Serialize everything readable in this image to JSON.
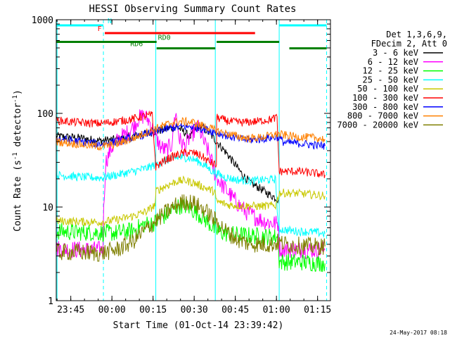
{
  "chart_data": {
    "type": "line",
    "title": "HESSI Observing Summary Count Rates",
    "xlabel": "Start Time (01-Oct-14 23:39:42)",
    "ylabel_main": "Count Rate (s",
    "ylabel_sup1": "-1",
    "ylabel_mid": " detector",
    "ylabel_sup2": "-1",
    "ylabel_end": ")",
    "footer_date": "24-May-2017 08:18",
    "x_unit": "minutes since 23:39:42",
    "xlim": [
      0,
      100
    ],
    "ylim": [
      1,
      1000
    ],
    "yscale": "log",
    "x_ticks": [
      {
        "label": "23:45",
        "x": 5.3
      },
      {
        "label": "00:00",
        "x": 20.3
      },
      {
        "label": "00:15",
        "x": 35.3
      },
      {
        "label": "00:30",
        "x": 50.3
      },
      {
        "label": "00:45",
        "x": 65.3
      },
      {
        "label": "01:00",
        "x": 80.3
      },
      {
        "label": "01:15",
        "x": 95.3
      }
    ],
    "y_ticks": [
      {
        "label": "1",
        "y": 1
      },
      {
        "label": "10",
        "y": 10
      },
      {
        "label": "100",
        "y": 100
      },
      {
        "label": "1000",
        "y": 1000
      }
    ],
    "legend_header": [
      "Det 1,3,6,9,",
      "FDecim 2, Att 0"
    ],
    "flag_bars": [
      {
        "label": "N",
        "color": "#00ffff",
        "y": 870,
        "segments": [
          [
            0,
            17.2
          ],
          [
            81.3,
            98.6
          ]
        ],
        "label_x": 19.5
      },
      {
        "label": "F",
        "color": "#ff0000",
        "y": 720,
        "segments": [
          [
            17.7,
            72.5
          ]
        ],
        "label_x": 15.8
      },
      {
        "label": "RD0",
        "color": "#007f00",
        "y": 580,
        "segments": [
          [
            0,
            36.6
          ],
          [
            58.5,
            81.3
          ]
        ],
        "label_x": 39.4
      },
      {
        "label": "RD6",
        "color": "#007f00",
        "y": 495,
        "segments": [
          [
            36.6,
            58.0
          ],
          [
            85.0,
            98.6
          ]
        ],
        "label_x": 29.3
      }
    ],
    "vlines": [
      {
        "x": 0.3,
        "color": "#00ffff",
        "style": "solid"
      },
      {
        "x": 17.2,
        "color": "#00ffff",
        "style": "dashed"
      },
      {
        "x": 36.3,
        "color": "#00ffff",
        "style": "solid"
      },
      {
        "x": 58.0,
        "color": "#00ffff",
        "style": "solid"
      },
      {
        "x": 81.3,
        "color": "#00ffff",
        "style": "solid"
      },
      {
        "x": 98.6,
        "color": "#00ffff",
        "style": "dashed"
      }
    ],
    "series": [
      {
        "name": "3 - 6 keV",
        "color": "#000000",
        "points": [
          [
            0,
            57
          ],
          [
            8,
            55
          ],
          [
            16,
            51
          ],
          [
            22,
            53
          ],
          [
            27,
            56
          ],
          [
            32,
            60
          ],
          [
            36,
            64
          ],
          [
            40,
            68
          ],
          [
            44,
            72
          ],
          [
            47,
            62
          ],
          [
            49,
            56
          ],
          [
            51,
            70
          ],
          [
            53,
            72
          ],
          [
            55,
            65
          ],
          [
            57,
            56
          ],
          [
            59,
            48
          ],
          [
            62,
            38
          ],
          [
            65,
            29
          ],
          [
            68,
            22
          ],
          [
            71,
            18
          ],
          [
            74,
            16
          ],
          [
            77,
            14
          ],
          [
            79,
            13
          ],
          [
            81,
            12
          ]
        ]
      },
      {
        "name": "6 - 12 keV",
        "color": "#ff00ff",
        "points": [
          [
            0,
            3.6
          ],
          [
            8,
            3.5
          ],
          [
            17,
            3.5
          ],
          [
            17.3,
            9
          ],
          [
            18,
            30
          ],
          [
            20,
            42
          ],
          [
            23,
            54
          ],
          [
            26,
            62
          ],
          [
            28,
            72
          ],
          [
            30,
            88
          ],
          [
            32,
            95
          ],
          [
            34,
            82
          ],
          [
            36,
            58
          ],
          [
            38,
            44
          ],
          [
            40,
            40
          ],
          [
            42,
            46
          ],
          [
            43.5,
            105
          ],
          [
            45,
            52
          ],
          [
            47,
            44
          ],
          [
            49,
            58
          ],
          [
            51,
            68
          ],
          [
            52,
            70
          ],
          [
            54,
            48
          ],
          [
            56,
            36
          ],
          [
            58,
            22
          ],
          [
            60,
            18
          ],
          [
            63,
            14
          ],
          [
            66,
            11
          ],
          [
            69,
            9
          ],
          [
            72,
            8
          ],
          [
            75,
            7.2
          ],
          [
            78,
            6.8
          ],
          [
            81,
            6.6
          ],
          [
            81.3,
            3.6
          ],
          [
            88,
            3.5
          ],
          [
            98,
            3.5
          ]
        ]
      },
      {
        "name": "12 - 25 keV",
        "color": "#00ff00",
        "points": [
          [
            0,
            5.5
          ],
          [
            8,
            5.4
          ],
          [
            17,
            5.3
          ],
          [
            22,
            5.3
          ],
          [
            28,
            5.6
          ],
          [
            32,
            6.5
          ],
          [
            36,
            6.8
          ],
          [
            38,
            7.5
          ],
          [
            40,
            8.2
          ],
          [
            42,
            9.2
          ],
          [
            44,
            10
          ],
          [
            46,
            10.5
          ],
          [
            48,
            10
          ],
          [
            50,
            9.2
          ],
          [
            52,
            8.4
          ],
          [
            54,
            7.5
          ],
          [
            56,
            6.6
          ],
          [
            58,
            5.6
          ],
          [
            62,
            5.2
          ],
          [
            68,
            5.0
          ],
          [
            74,
            4.9
          ],
          [
            79,
            4.8
          ],
          [
            81,
            4.8
          ],
          [
            81.3,
            2.6
          ],
          [
            88,
            2.6
          ],
          [
            98,
            2.5
          ]
        ]
      },
      {
        "name": "25 - 50 keV",
        "color": "#00ffff",
        "points": [
          [
            0,
            22
          ],
          [
            8,
            21
          ],
          [
            16,
            20.5
          ],
          [
            22,
            22
          ],
          [
            28,
            24
          ],
          [
            33,
            26
          ],
          [
            37,
            29
          ],
          [
            41,
            32
          ],
          [
            45,
            34
          ],
          [
            48,
            33.5
          ],
          [
            51,
            31.5
          ],
          [
            54,
            28
          ],
          [
            57,
            24
          ],
          [
            61,
            21
          ],
          [
            66,
            19.5
          ],
          [
            71,
            19
          ],
          [
            76,
            19.5
          ],
          [
            80,
            19.8
          ],
          [
            81,
            5.8
          ],
          [
            88,
            5.5
          ],
          [
            94,
            5.4
          ],
          [
            98,
            5.2
          ]
        ]
      },
      {
        "name": "50 - 100 keV",
        "color": "#c8c800",
        "points": [
          [
            0,
            7.1
          ],
          [
            8,
            7
          ],
          [
            16,
            6.9
          ],
          [
            22,
            7.3
          ],
          [
            28,
            8
          ],
          [
            33,
            9
          ],
          [
            36,
            10.5
          ],
          [
            36.4,
            14.8
          ],
          [
            40,
            16.8
          ],
          [
            44,
            18.8
          ],
          [
            47,
            19.2
          ],
          [
            50,
            18.2
          ],
          [
            54,
            16.2
          ],
          [
            58,
            14.5
          ],
          [
            58.2,
            11.5
          ],
          [
            63,
            10.5
          ],
          [
            68,
            10.3
          ],
          [
            74,
            10.2
          ],
          [
            80,
            10.4
          ],
          [
            81.3,
            14.2
          ],
          [
            88,
            14
          ],
          [
            94,
            13.5
          ],
          [
            98,
            13.2
          ]
        ]
      },
      {
        "name": "100 - 300 keV",
        "color": "#ff0000",
        "points": [
          [
            0,
            84
          ],
          [
            8,
            80
          ],
          [
            16,
            78
          ],
          [
            22,
            82
          ],
          [
            27,
            86
          ],
          [
            31,
            92
          ],
          [
            35,
            96
          ],
          [
            36.3,
            27
          ],
          [
            40,
            32
          ],
          [
            44,
            36
          ],
          [
            47,
            38
          ],
          [
            50,
            38
          ],
          [
            53,
            35
          ],
          [
            56,
            30
          ],
          [
            58.4,
            28
          ],
          [
            58.5,
            90
          ],
          [
            63,
            82
          ],
          [
            68,
            80
          ],
          [
            73,
            82
          ],
          [
            78,
            86
          ],
          [
            80.5,
            90
          ],
          [
            81.3,
            24
          ],
          [
            88,
            24
          ],
          [
            94,
            23
          ],
          [
            98,
            22
          ]
        ]
      },
      {
        "name": "300 - 800 keV",
        "color": "#0000ff",
        "points": [
          [
            0,
            54
          ],
          [
            8,
            50
          ],
          [
            16,
            47
          ],
          [
            22,
            50
          ],
          [
            28,
            55
          ],
          [
            33,
            61
          ],
          [
            38,
            66
          ],
          [
            42,
            70
          ],
          [
            46,
            72
          ],
          [
            50,
            72
          ],
          [
            54,
            68
          ],
          [
            58,
            63
          ],
          [
            62,
            58
          ],
          [
            66,
            54
          ],
          [
            70,
            52
          ],
          [
            74,
            53
          ],
          [
            78,
            55
          ],
          [
            81,
            56
          ],
          [
            83,
            49
          ],
          [
            88,
            48
          ],
          [
            94,
            46
          ],
          [
            98,
            45
          ]
        ]
      },
      {
        "name": "800 - 7000 keV",
        "color": "#ff8000",
        "points": [
          [
            0,
            50
          ],
          [
            8,
            47
          ],
          [
            16,
            44
          ],
          [
            22,
            47
          ],
          [
            28,
            54
          ],
          [
            33,
            63
          ],
          [
            38,
            72
          ],
          [
            42,
            79
          ],
          [
            46,
            82
          ],
          [
            50,
            80
          ],
          [
            54,
            73
          ],
          [
            58,
            66
          ],
          [
            62,
            61
          ],
          [
            66,
            57
          ],
          [
            70,
            54
          ],
          [
            74,
            55
          ],
          [
            78,
            58
          ],
          [
            81,
            60
          ],
          [
            84,
            58
          ],
          [
            88,
            56
          ],
          [
            94,
            55
          ],
          [
            98,
            53
          ]
        ]
      },
      {
        "name": "7000 - 20000 keV",
        "color": "#7f7f00",
        "points": [
          [
            0,
            3.3
          ],
          [
            8,
            3.3
          ],
          [
            16,
            3.2
          ],
          [
            22,
            3.5
          ],
          [
            28,
            4.3
          ],
          [
            32,
            5.5
          ],
          [
            36,
            7
          ],
          [
            40,
            8.8
          ],
          [
            44,
            10.6
          ],
          [
            47,
            11.5
          ],
          [
            50,
            11
          ],
          [
            54,
            9.3
          ],
          [
            58,
            7.2
          ],
          [
            62,
            5.5
          ],
          [
            66,
            4.5
          ],
          [
            70,
            4.1
          ],
          [
            74,
            4.0
          ],
          [
            79,
            4.0
          ],
          [
            81,
            4.2
          ],
          [
            84,
            4.0
          ],
          [
            88,
            3.9
          ],
          [
            94,
            3.8
          ],
          [
            98,
            3.8
          ]
        ]
      }
    ]
  }
}
